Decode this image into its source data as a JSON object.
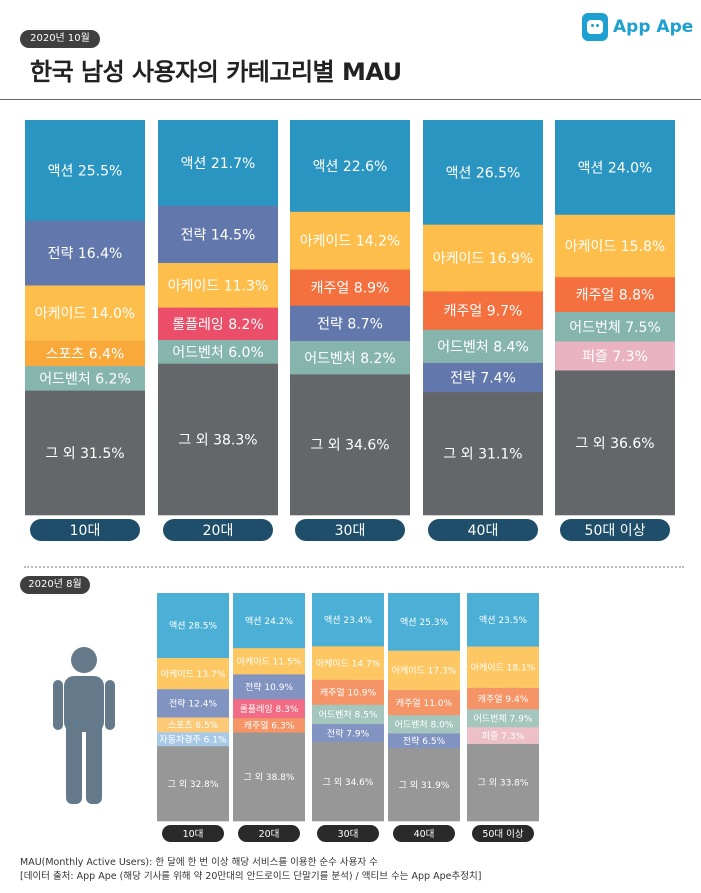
{
  "header": {
    "period_badge": "2020년 10월",
    "title": "한국 남성 사용자의 카테고리별 MAU",
    "brand": "App Ape"
  },
  "section2": {
    "period_badge": "2020년 8월"
  },
  "footer": {
    "line1": "MAU(Monthly Active Users):  한 달에 한 번 이상 해당 서비스를 이용한 순수 사용자 수",
    "line2": "[데이터 출처: App Ape (해당 기사를 위해 약 20만대의 안드로이드 단말기를 분석) / 액티브 수는 App Ape추정치]"
  },
  "colors": {
    "액션": "#2a95c1",
    "전략": "#6278ac",
    "아케이드": "#fdbe4b",
    "스포츠": "#f8a93a",
    "어드벤처": "#86b5ae",
    "그 외": "#646769",
    "롤플레잉": "#ea4e69",
    "캐주얼": "#f4703f",
    "어드번체": "#86b5ae",
    "퍼즐": "#eab3c1",
    "자동차경주": "#9fc4e2",
    "age_pill": "#1f4e6b",
    "액션_light": "#4bafd6",
    "전략_light": "#8193c1",
    "아케이드_light": "#fdc763",
    "스포츠_light": "#fbc977",
    "어드벤처_light": "#a4c6bd",
    "그 외_light": "#979797",
    "롤플레잉_light": "#f16c84",
    "캐주얼_light": "#f59466",
    "어드번체_light": "#a4c6bd",
    "퍼즐_light": "#edc0c8",
    "자동차경주_light": "#a8c9e6",
    "age_pill_light": "#2a2a2a"
  },
  "chart_data": [
    {
      "type": "bar",
      "stacked": true,
      "title": "한국 남성 사용자의 카테고리별 MAU (2020년 10월)",
      "unit": "%",
      "categories": [
        "10대",
        "20대",
        "30대",
        "40대",
        "50대 이상"
      ],
      "stacks": [
        [
          {
            "label": "액션",
            "value": 25.5
          },
          {
            "label": "전략",
            "value": 16.4
          },
          {
            "label": "아케이드",
            "value": 14.0
          },
          {
            "label": "스포츠",
            "value": 6.4
          },
          {
            "label": "어드벤처",
            "value": 6.2
          },
          {
            "label": "그 외",
            "value": 31.5
          }
        ],
        [
          {
            "label": "액션",
            "value": 21.7
          },
          {
            "label": "전략",
            "value": 14.5
          },
          {
            "label": "아케이드",
            "value": 11.3
          },
          {
            "label": "롤플레잉",
            "value": 8.2
          },
          {
            "label": "어드벤처",
            "value": 6.0
          },
          {
            "label": "그 외",
            "value": 38.3
          }
        ],
        [
          {
            "label": "액션",
            "value": 22.6
          },
          {
            "label": "아케이드",
            "value": 14.2
          },
          {
            "label": "캐주얼",
            "value": 8.9
          },
          {
            "label": "전략",
            "value": 8.7
          },
          {
            "label": "어드벤처",
            "value": 8.2
          },
          {
            "label": "그 외",
            "value": 34.6
          }
        ],
        [
          {
            "label": "액션",
            "value": 26.5
          },
          {
            "label": "아케이드",
            "value": 16.9
          },
          {
            "label": "캐주얼",
            "value": 9.7
          },
          {
            "label": "어드벤처",
            "value": 8.4
          },
          {
            "label": "전략",
            "value": 7.4
          },
          {
            "label": "그 외",
            "value": 31.1
          }
        ],
        [
          {
            "label": "액션",
            "value": 24.0
          },
          {
            "label": "아케이드",
            "value": 15.8
          },
          {
            "label": "캐주얼",
            "value": 8.8
          },
          {
            "label": "어드번체",
            "value": 7.5
          },
          {
            "label": "퍼즐",
            "value": 7.3
          },
          {
            "label": "그 외",
            "value": 36.6
          }
        ]
      ]
    },
    {
      "type": "bar",
      "stacked": true,
      "title": "한국 남성 사용자의 카테고리별 MAU (2020년 8월)",
      "unit": "%",
      "categories": [
        "10대",
        "20대",
        "30대",
        "40대",
        "50대 이상"
      ],
      "stacks": [
        [
          {
            "label": "액션",
            "value": 28.5
          },
          {
            "label": "아케이드",
            "value": 13.7
          },
          {
            "label": "전략",
            "value": 12.4
          },
          {
            "label": "스포츠",
            "value": 6.5
          },
          {
            "label": "자동차경주",
            "value": 6.1
          },
          {
            "label": "그 외",
            "value": 32.8
          }
        ],
        [
          {
            "label": "액션",
            "value": 24.2
          },
          {
            "label": "아케이드",
            "value": 11.5
          },
          {
            "label": "전략",
            "value": 10.9
          },
          {
            "label": "롤플레잉",
            "value": 8.3
          },
          {
            "label": "캐주얼",
            "value": 6.3
          },
          {
            "label": "그 외",
            "value": 38.8
          }
        ],
        [
          {
            "label": "액션",
            "value": 23.4
          },
          {
            "label": "아케이드",
            "value": 14.7
          },
          {
            "label": "캐주얼",
            "value": 10.9
          },
          {
            "label": "어드벤처",
            "value": 8.5
          },
          {
            "label": "전략",
            "value": 7.9
          },
          {
            "label": "그 외",
            "value": 34.6
          }
        ],
        [
          {
            "label": "액션",
            "value": 25.3
          },
          {
            "label": "아케이드",
            "value": 17.3
          },
          {
            "label": "캐주얼",
            "value": 11.0
          },
          {
            "label": "어드벤처",
            "value": 8.0
          },
          {
            "label": "전략",
            "value": 6.5
          },
          {
            "label": "그 외",
            "value": 31.9
          }
        ],
        [
          {
            "label": "액션",
            "value": 23.5
          },
          {
            "label": "아케이드",
            "value": 18.1
          },
          {
            "label": "캐주얼",
            "value": 9.4
          },
          {
            "label": "어드번체",
            "value": 7.9
          },
          {
            "label": "퍼즐",
            "value": 7.3
          },
          {
            "label": "그 외",
            "value": 33.8
          }
        ]
      ]
    }
  ]
}
